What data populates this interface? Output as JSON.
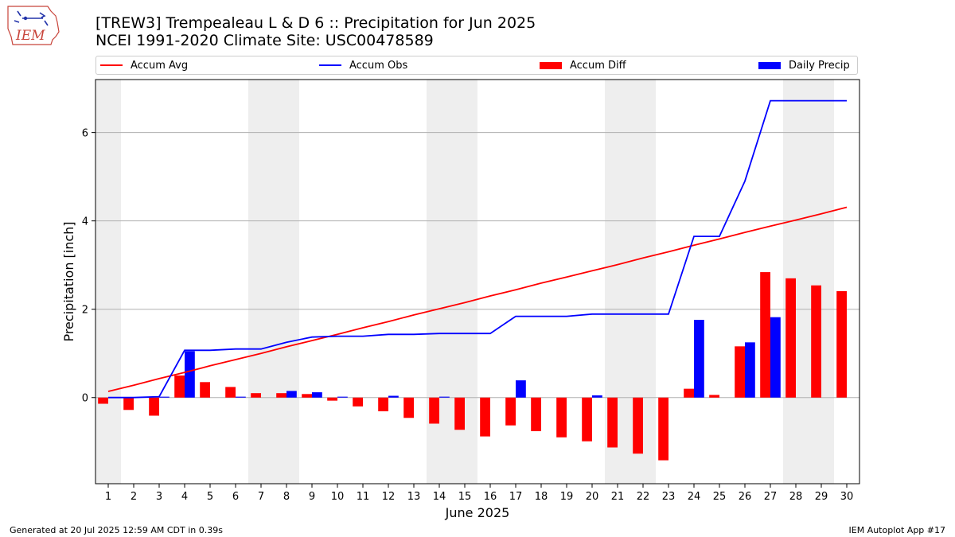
{
  "header": {
    "title_line1": "[TREW3] Trempealeau L & D 6 :: Precipitation for Jun 2025",
    "title_line2": "NCEI 1991-2020 Climate Site: USC00478589",
    "logo_text": "IEM"
  },
  "footer": {
    "generated": "Generated at 20 Jul 2025 12:59 AM CDT in 0.39s",
    "app": "IEM Autoplot App #17"
  },
  "colors": {
    "avg": "#ff0000",
    "obs": "#0000ff",
    "diff": "#ff0000",
    "daily": "#0000ff",
    "weekend": "#eeeeee",
    "grid": "#b0b0b0"
  },
  "chart_data": {
    "type": "bar",
    "title": "[TREW3] Trempealeau L & D 6 :: Precipitation for Jun 2025",
    "subtitle": "NCEI 1991-2020 Climate Site: USC00478589",
    "xlabel": "June 2025",
    "ylabel": "Precipitation [inch]",
    "xlim": [
      0.5,
      30.5
    ],
    "ylim": [
      -1.95,
      7.2
    ],
    "yticks": [
      0,
      2,
      4,
      6
    ],
    "grid": "horizontal",
    "legend_position": "top",
    "legend": [
      "Accum Avg",
      "Accum Obs",
      "Accum Diff",
      "Daily Precip"
    ],
    "shaded_days": [
      1,
      7,
      8,
      14,
      15,
      21,
      22,
      28,
      29
    ],
    "days": [
      1,
      2,
      3,
      4,
      5,
      6,
      7,
      8,
      9,
      10,
      11,
      12,
      13,
      14,
      15,
      16,
      17,
      18,
      19,
      20,
      21,
      22,
      23,
      24,
      25,
      26,
      27,
      28,
      29,
      30
    ],
    "series": [
      {
        "name": "Accum Avg",
        "kind": "line",
        "values": [
          0.14,
          0.28,
          0.43,
          0.57,
          0.72,
          0.86,
          1.0,
          1.15,
          1.29,
          1.43,
          1.58,
          1.72,
          1.87,
          2.01,
          2.15,
          2.3,
          2.44,
          2.59,
          2.73,
          2.87,
          3.01,
          3.16,
          3.3,
          3.45,
          3.59,
          3.74,
          3.88,
          4.02,
          4.16,
          4.31
        ]
      },
      {
        "name": "Accum Obs",
        "kind": "line",
        "values": [
          0.0,
          0.0,
          0.02,
          1.07,
          1.07,
          1.1,
          1.1,
          1.25,
          1.37,
          1.39,
          1.39,
          1.43,
          1.43,
          1.45,
          1.45,
          1.45,
          1.84,
          1.84,
          1.84,
          1.89,
          1.89,
          1.89,
          1.89,
          3.65,
          3.65,
          4.9,
          6.72,
          6.72,
          6.72,
          6.72
        ]
      },
      {
        "name": "Accum Diff",
        "kind": "bar",
        "values": [
          -0.14,
          -0.28,
          -0.41,
          0.5,
          0.35,
          0.24,
          0.1,
          0.1,
          0.08,
          -0.07,
          -0.2,
          -0.31,
          -0.46,
          -0.59,
          -0.73,
          -0.88,
          -0.63,
          -0.76,
          -0.9,
          -0.99,
          -1.13,
          -1.27,
          -1.42,
          0.2,
          0.06,
          1.16,
          2.84,
          2.7,
          2.54,
          2.41
        ]
      },
      {
        "name": "Daily Precip",
        "kind": "bar",
        "values": [
          0.0,
          0.0,
          0.02,
          1.05,
          0.0,
          0.02,
          0.0,
          0.15,
          0.12,
          0.02,
          0.0,
          0.04,
          0.0,
          0.02,
          0.0,
          0.0,
          0.39,
          0.0,
          0.0,
          0.05,
          0.0,
          0.0,
          0.0,
          1.76,
          0.0,
          1.25,
          1.82,
          0.0,
          0.0,
          0.0
        ]
      }
    ]
  }
}
